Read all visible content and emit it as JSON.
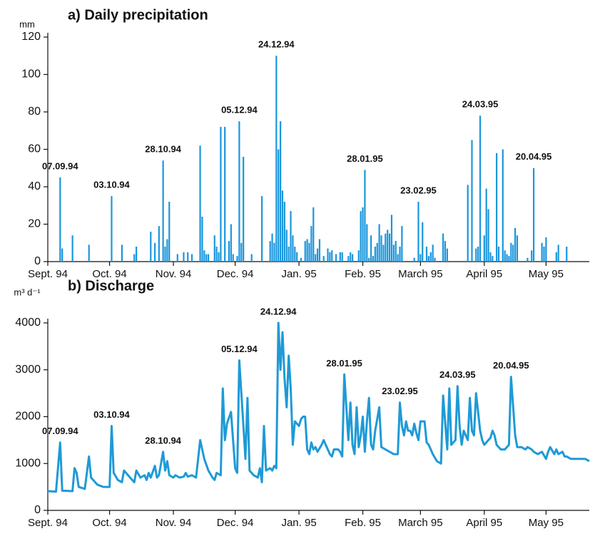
{
  "chart_data": [
    {
      "type": "bar",
      "title": "a) Daily precipitation",
      "y_label": "mm",
      "color": "#1a96dc",
      "xlim": [
        0,
        263
      ],
      "ylim": [
        0,
        120
      ],
      "yticks": [
        0,
        20,
        40,
        60,
        80,
        100,
        120
      ],
      "xticks": [
        {
          "value": 0,
          "label": "Sept. 94"
        },
        {
          "value": 30,
          "label": "Oct. 94"
        },
        {
          "value": 61,
          "label": "Nov. 94"
        },
        {
          "value": 91,
          "label": "Dec. 94"
        },
        {
          "value": 122,
          "label": "Jan. 95"
        },
        {
          "value": 153,
          "label": "Feb. 95"
        },
        {
          "value": 181,
          "label": "March 95"
        },
        {
          "value": 212,
          "label": "April 95"
        },
        {
          "value": 242,
          "label": "May 95"
        }
      ],
      "x": [
        6,
        7,
        12,
        20,
        31,
        36,
        42,
        43,
        50,
        52,
        54,
        56,
        57,
        58,
        59,
        63,
        66,
        68,
        70,
        74,
        75,
        76,
        77,
        78,
        81,
        82,
        83,
        84,
        86,
        88,
        89,
        90,
        92,
        93,
        94,
        95,
        99,
        104,
        108,
        109,
        110,
        111,
        112,
        113,
        114,
        115,
        116,
        117,
        118,
        119,
        120,
        121,
        123,
        125,
        126,
        127,
        128,
        129,
        130,
        131,
        132,
        134,
        136,
        137,
        138,
        140,
        142,
        143,
        146,
        147,
        148,
        151,
        152,
        153,
        154,
        155,
        156,
        157,
        158,
        159,
        160,
        161,
        162,
        163,
        164,
        165,
        166,
        167,
        168,
        169,
        170,
        171,
        172,
        178,
        180,
        181,
        182,
        184,
        185,
        186,
        187,
        188,
        192,
        193,
        194,
        204,
        206,
        208,
        209,
        210,
        212,
        213,
        214,
        215,
        216,
        218,
        219,
        221,
        222,
        223,
        224,
        225,
        226,
        227,
        228,
        233,
        235,
        236,
        240,
        241,
        242,
        247,
        248,
        252
      ],
      "values": [
        45,
        7,
        14,
        9,
        35,
        9,
        4,
        8,
        16,
        10,
        19,
        54,
        8,
        12,
        32,
        4,
        5,
        5,
        4,
        62,
        24,
        6,
        4,
        4,
        14,
        8,
        5,
        72,
        72,
        11,
        20,
        4,
        3,
        75,
        10,
        56,
        4,
        35,
        11,
        15,
        10,
        110,
        60,
        75,
        38,
        32,
        17,
        8,
        27,
        14,
        8,
        5,
        2,
        11,
        12,
        10,
        19,
        29,
        4,
        7,
        12,
        3,
        7,
        5,
        6,
        4,
        5,
        5,
        3,
        5,
        4,
        6,
        27,
        29,
        49,
        20,
        2,
        14,
        3,
        8,
        10,
        20,
        14,
        9,
        15,
        17,
        15,
        25,
        9,
        11,
        4,
        8,
        19,
        2,
        32,
        4,
        21,
        8,
        3,
        5,
        9,
        2,
        15,
        11,
        7,
        41,
        65,
        7,
        8,
        78,
        14,
        39,
        28,
        5,
        3,
        58,
        8,
        60,
        6,
        4,
        3,
        10,
        9,
        18,
        14,
        2,
        6,
        50,
        10,
        8,
        13,
        5,
        9,
        8
      ],
      "annotations": [
        {
          "text": "07.09.94",
          "x": 6,
          "y": 45
        },
        {
          "text": "03.10.94",
          "x": 31,
          "y": 35
        },
        {
          "text": "28.10.94",
          "x": 56,
          "y": 54
        },
        {
          "text": "05.12.94",
          "x": 93,
          "y": 75
        },
        {
          "text": "24.12.94",
          "x": 111,
          "y": 110
        },
        {
          "text": "28.01.95",
          "x": 154,
          "y": 49
        },
        {
          "text": "23.02.95",
          "x": 180,
          "y": 32
        },
        {
          "text": "24.03.95",
          "x": 210,
          "y": 78
        },
        {
          "text": "20.04.95",
          "x": 236,
          "y": 50
        }
      ]
    },
    {
      "type": "line",
      "title": "b) Discharge",
      "y_label": "m³ d⁻¹",
      "color": "#1e9ad6",
      "xlim": [
        0,
        263
      ],
      "ylim": [
        0,
        4000
      ],
      "yticks": [
        0,
        1000,
        2000,
        3000,
        4000
      ],
      "xticks": [
        {
          "value": 0,
          "label": "Sept. 94"
        },
        {
          "value": 30,
          "label": "Oct. 94"
        },
        {
          "value": 61,
          "label": "Nov. 94"
        },
        {
          "value": 91,
          "label": "Dec. 94"
        },
        {
          "value": 122,
          "label": "Jan. 95"
        },
        {
          "value": 153,
          "label": "Feb. 95"
        },
        {
          "value": 181,
          "label": "March 95"
        },
        {
          "value": 212,
          "label": "April 95"
        },
        {
          "value": 242,
          "label": "May 95"
        }
      ],
      "x": [
        0,
        4,
        6,
        7,
        12,
        13,
        14,
        15,
        18,
        20,
        21,
        24,
        27,
        30,
        31,
        32,
        34,
        36,
        37,
        40,
        42,
        43,
        45,
        47,
        48,
        49,
        50,
        52,
        53,
        54,
        56,
        57,
        58,
        59,
        61,
        62,
        64,
        66,
        67,
        68,
        70,
        72,
        74,
        76,
        78,
        80,
        81,
        82,
        84,
        85,
        86,
        87,
        89,
        90,
        91,
        92,
        93,
        95,
        96,
        97,
        98,
        99,
        100,
        102,
        103,
        104,
        105,
        106,
        108,
        109,
        110,
        111,
        112,
        113,
        114,
        115,
        116,
        117,
        118,
        119,
        120,
        121,
        122,
        123,
        124,
        125,
        126,
        127,
        128,
        129,
        130,
        131,
        133,
        134,
        135,
        137,
        138,
        139,
        141,
        142,
        143,
        144,
        145,
        146,
        147,
        148,
        149,
        150,
        151,
        152,
        153,
        154,
        155,
        156,
        157,
        158,
        159,
        161,
        162,
        164,
        166,
        168,
        170,
        171,
        172,
        173,
        174,
        175,
        176,
        177,
        178,
        179,
        180,
        181,
        183,
        184,
        185,
        187,
        189,
        191,
        192,
        194,
        195,
        196,
        198,
        199,
        200,
        201,
        202,
        204,
        205,
        206,
        207,
        208,
        210,
        211,
        212,
        214,
        215,
        216,
        217,
        218,
        220,
        222,
        224,
        225,
        227,
        228,
        230,
        232,
        233,
        235,
        236,
        238,
        240,
        242,
        243,
        244,
        246,
        247,
        248,
        250,
        251,
        252,
        254,
        256,
        258,
        260,
        261,
        263
      ],
      "values": [
        410,
        400,
        1450,
        420,
        410,
        900,
        800,
        500,
        460,
        1150,
        700,
        550,
        500,
        500,
        1800,
        800,
        650,
        600,
        850,
        700,
        600,
        850,
        700,
        750,
        650,
        800,
        700,
        950,
        700,
        750,
        1250,
        850,
        1050,
        750,
        700,
        750,
        700,
        720,
        800,
        720,
        750,
        700,
        1500,
        1100,
        850,
        700,
        650,
        800,
        750,
        2600,
        1500,
        1850,
        2100,
        1500,
        900,
        800,
        3200,
        1800,
        1100,
        2400,
        850,
        800,
        750,
        700,
        900,
        600,
        1800,
        850,
        900,
        850,
        950,
        900,
        4000,
        3000,
        3800,
        2800,
        2200,
        3300,
        2600,
        1400,
        1900,
        1850,
        1800,
        1950,
        2000,
        2000,
        1300,
        1200,
        1450,
        1300,
        1350,
        1250,
        1400,
        1500,
        1400,
        1200,
        1150,
        1300,
        1300,
        1250,
        1150,
        2900,
        2200,
        1500,
        2300,
        1400,
        1200,
        2200,
        1350,
        1600,
        2000,
        1250,
        1900,
        2400,
        1400,
        1300,
        1700,
        2200,
        1350,
        1300,
        1250,
        1200,
        1200,
        2300,
        1800,
        1600,
        1900,
        1700,
        1700,
        1600,
        1850,
        1650,
        1500,
        1900,
        1900,
        1450,
        1400,
        1200,
        1050,
        1000,
        2450,
        1300,
        2600,
        1400,
        1500,
        2650,
        1800,
        1400,
        1700,
        1500,
        2400,
        1700,
        1600,
        2500,
        1700,
        1500,
        1400,
        1500,
        1550,
        1700,
        1600,
        1400,
        1300,
        1300,
        1400,
        2850,
        1600,
        1350,
        1350,
        1300,
        1350,
        1300,
        1250,
        1200,
        1250,
        1100,
        1250,
        1350,
        1200,
        1300,
        1200,
        1250,
        1150,
        1150,
        1100,
        1100,
        1100,
        1100,
        1100,
        1050
      ],
      "annotations": [
        {
          "text": "07.09.94",
          "x": 6,
          "y": 1450
        },
        {
          "text": "03.10.94",
          "x": 31,
          "y": 1800
        },
        {
          "text": "28.10.94",
          "x": 56,
          "y": 1250
        },
        {
          "text": "05.12.94",
          "x": 93,
          "y": 3200
        },
        {
          "text": "24.12.94",
          "x": 112,
          "y": 4000
        },
        {
          "text": "28.01.95",
          "x": 144,
          "y": 2900
        },
        {
          "text": "23.02.95",
          "x": 171,
          "y": 2300
        },
        {
          "text": "24.03.95",
          "x": 199,
          "y": 2650
        },
        {
          "text": "20.04.95",
          "x": 225,
          "y": 2850
        }
      ]
    }
  ]
}
